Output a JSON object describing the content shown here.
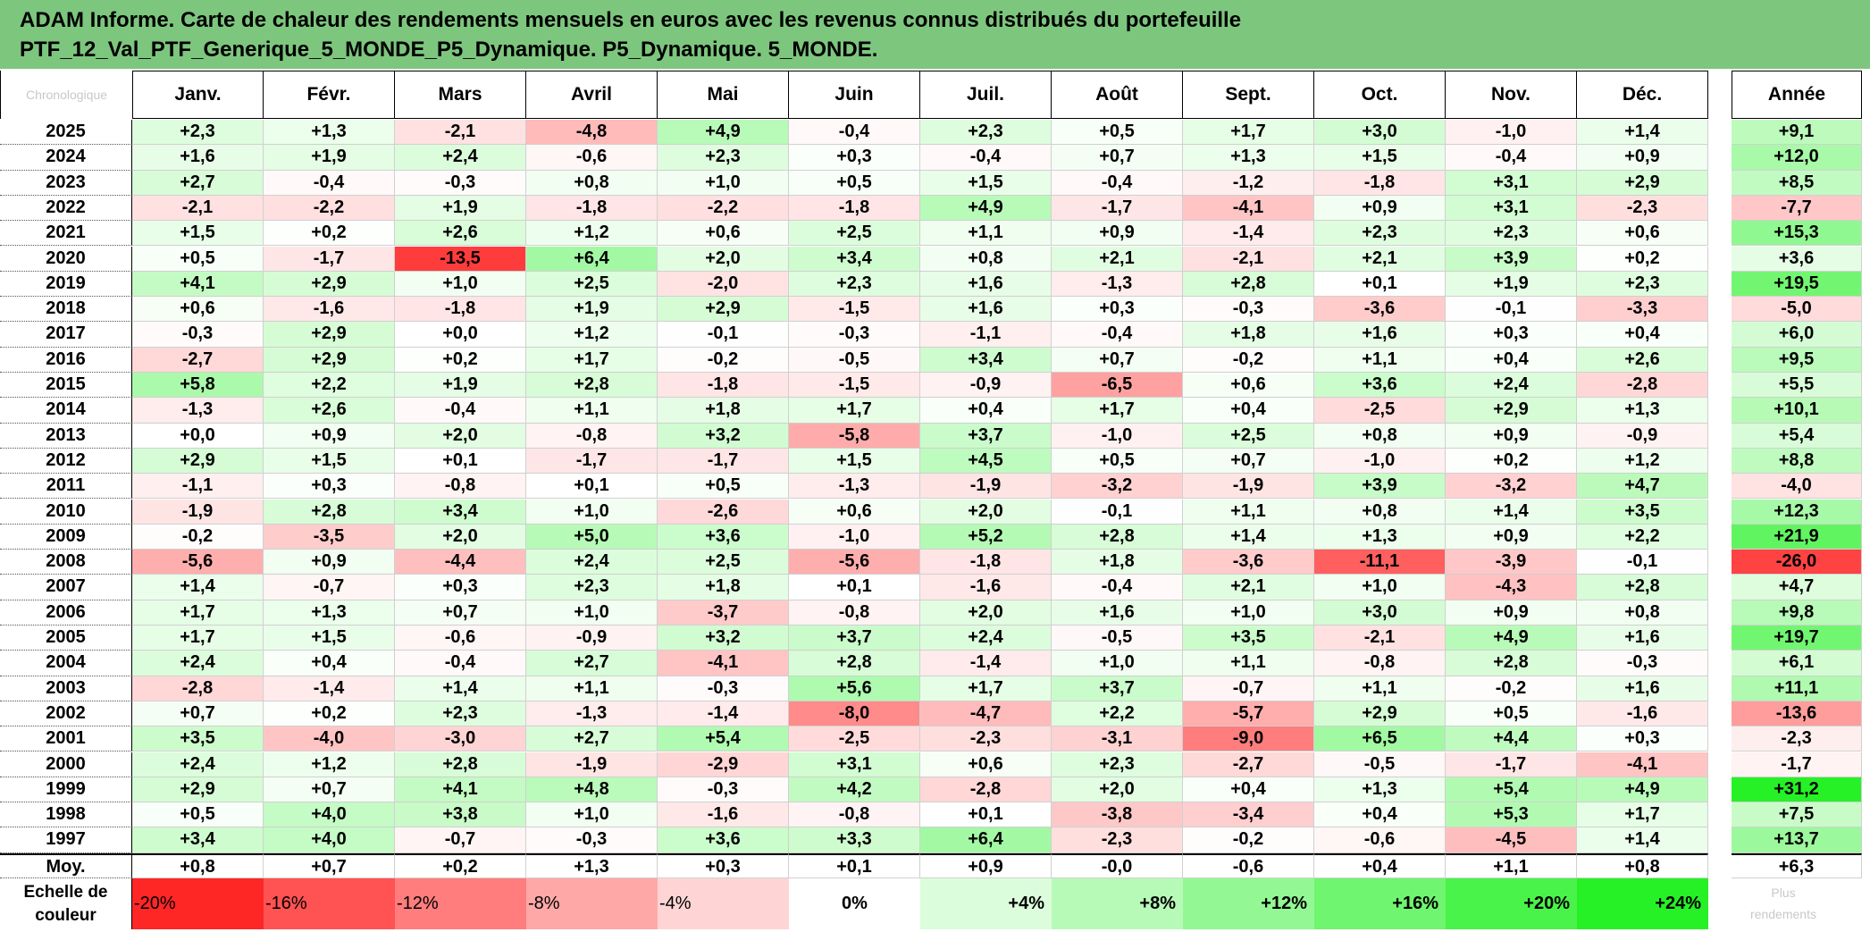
{
  "title_line1": "ADAM Informe. Carte de chaleur des rendements mensuels en euros avec les revenus connus distribués du portefeuille",
  "title_line2": "PTF_12_Val_PTF_Generique_5_MONDE_P5_Dynamique. P5_Dynamique. 5_MONDE.",
  "corner_label": "Chronologique",
  "year_header": "Année",
  "average_label": "Moy.",
  "scale_label_line1": "Echelle de",
  "scale_label_line2": "couleur",
  "scale_ghost_line1": "Plus",
  "scale_ghost_line2": "rendements",
  "colors": {
    "negative": "#ff0000",
    "positive": "#00ee00",
    "neutral": "#ffffff",
    "header": "#7dc67e"
  },
  "chart_data": {
    "type": "heatmap",
    "months": [
      "Janv.",
      "Févr.",
      "Mars",
      "Avril",
      "Mai",
      "Juin",
      "Juil.",
      "Août",
      "Sept.",
      "Oct.",
      "Nov.",
      "Déc."
    ],
    "rows": [
      {
        "year": "2025",
        "values": [
          "+2,3",
          "+1,3",
          "-2,1",
          "-4,8",
          "+4,9",
          "-0,4",
          "+2,3",
          "+0,5",
          "+1,7",
          "+3,0",
          "-1,0",
          "+1,4"
        ],
        "annual": "+9,1"
      },
      {
        "year": "2024",
        "values": [
          "+1,6",
          "+1,9",
          "+2,4",
          "-0,6",
          "+2,3",
          "+0,3",
          "-0,4",
          "+0,7",
          "+1,3",
          "+1,5",
          "-0,4",
          "+0,9"
        ],
        "annual": "+12,0"
      },
      {
        "year": "2023",
        "values": [
          "+2,7",
          "-0,4",
          "-0,3",
          "+0,8",
          "+1,0",
          "+0,5",
          "+1,5",
          "-0,4",
          "-1,2",
          "-1,8",
          "+3,1",
          "+2,9"
        ],
        "annual": "+8,5"
      },
      {
        "year": "2022",
        "values": [
          "-2,1",
          "-2,2",
          "+1,9",
          "-1,8",
          "-2,2",
          "-1,8",
          "+4,9",
          "-1,7",
          "-4,1",
          "+0,9",
          "+3,1",
          "-2,3"
        ],
        "annual": "-7,7"
      },
      {
        "year": "2021",
        "values": [
          "+1,5",
          "+0,2",
          "+2,6",
          "+1,2",
          "+0,6",
          "+2,5",
          "+1,1",
          "+0,9",
          "-1,4",
          "+2,3",
          "+2,3",
          "+0,6"
        ],
        "annual": "+15,3"
      },
      {
        "year": "2020",
        "values": [
          "+0,5",
          "-1,7",
          "-13,5",
          "+6,4",
          "+2,0",
          "+3,4",
          "+0,8",
          "+2,1",
          "-2,1",
          "+2,1",
          "+3,9",
          "+0,2"
        ],
        "annual": "+3,6"
      },
      {
        "year": "2019",
        "values": [
          "+4,1",
          "+2,9",
          "+1,0",
          "+2,5",
          "-2,0",
          "+2,3",
          "+1,6",
          "-1,3",
          "+2,8",
          "+0,1",
          "+1,9",
          "+2,3"
        ],
        "annual": "+19,5"
      },
      {
        "year": "2018",
        "values": [
          "+0,6",
          "-1,6",
          "-1,8",
          "+1,9",
          "+2,9",
          "-1,5",
          "+1,6",
          "+0,3",
          "-0,3",
          "-3,6",
          "-0,1",
          "-3,3"
        ],
        "annual": "-5,0"
      },
      {
        "year": "2017",
        "values": [
          "-0,3",
          "+2,9",
          "+0,0",
          "+1,2",
          "-0,1",
          "-0,3",
          "-1,1",
          "-0,4",
          "+1,8",
          "+1,6",
          "+0,3",
          "+0,4"
        ],
        "annual": "+6,0"
      },
      {
        "year": "2016",
        "values": [
          "-2,7",
          "+2,9",
          "+0,2",
          "+1,7",
          "-0,2",
          "-0,5",
          "+3,4",
          "+0,7",
          "-0,2",
          "+1,1",
          "+0,4",
          "+2,6"
        ],
        "annual": "+9,5"
      },
      {
        "year": "2015",
        "values": [
          "+5,8",
          "+2,2",
          "+1,9",
          "+2,8",
          "-1,8",
          "-1,5",
          "-0,9",
          "-6,5",
          "+0,6",
          "+3,6",
          "+2,4",
          "-2,8"
        ],
        "annual": "+5,5"
      },
      {
        "year": "2014",
        "values": [
          "-1,3",
          "+2,6",
          "-0,4",
          "+1,1",
          "+1,8",
          "+1,7",
          "+0,4",
          "+1,7",
          "+0,4",
          "-2,5",
          "+2,9",
          "+1,3"
        ],
        "annual": "+10,1"
      },
      {
        "year": "2013",
        "values": [
          "+0,0",
          "+0,9",
          "+2,0",
          "-0,8",
          "+3,2",
          "-5,8",
          "+3,7",
          "-1,0",
          "+2,5",
          "+0,8",
          "+0,9",
          "-0,9"
        ],
        "annual": "+5,4"
      },
      {
        "year": "2012",
        "values": [
          "+2,9",
          "+1,5",
          "+0,1",
          "-1,7",
          "-1,7",
          "+1,5",
          "+4,5",
          "+0,5",
          "+0,7",
          "-1,0",
          "+0,2",
          "+1,2"
        ],
        "annual": "+8,8"
      },
      {
        "year": "2011",
        "values": [
          "-1,1",
          "+0,3",
          "-0,8",
          "+0,1",
          "+0,5",
          "-1,3",
          "-1,9",
          "-3,2",
          "-1,9",
          "+3,9",
          "-3,2",
          "+4,7"
        ],
        "annual": "-4,0"
      },
      {
        "year": "2010",
        "values": [
          "-1,9",
          "+2,8",
          "+3,4",
          "+1,0",
          "-2,6",
          "+0,6",
          "+2,0",
          "-0,1",
          "+1,1",
          "+0,8",
          "+1,4",
          "+3,5"
        ],
        "annual": "+12,3"
      },
      {
        "year": "2009",
        "values": [
          "-0,2",
          "-3,5",
          "+2,0",
          "+5,0",
          "+3,6",
          "-1,0",
          "+5,2",
          "+2,8",
          "+1,4",
          "+1,3",
          "+0,9",
          "+2,2"
        ],
        "annual": "+21,9"
      },
      {
        "year": "2008",
        "values": [
          "-5,6",
          "+0,9",
          "-4,4",
          "+2,4",
          "+2,5",
          "-5,6",
          "-1,8",
          "+1,8",
          "-3,6",
          "-11,1",
          "-3,9",
          "-0,1"
        ],
        "annual": "-26,0"
      },
      {
        "year": "2007",
        "values": [
          "+1,4",
          "-0,7",
          "+0,3",
          "+2,3",
          "+1,8",
          "+0,1",
          "-1,6",
          "-0,4",
          "+2,1",
          "+1,0",
          "-4,3",
          "+2,8"
        ],
        "annual": "+4,7"
      },
      {
        "year": "2006",
        "values": [
          "+1,7",
          "+1,3",
          "+0,7",
          "+1,0",
          "-3,7",
          "-0,8",
          "+2,0",
          "+1,6",
          "+1,0",
          "+3,0",
          "+0,9",
          "+0,8"
        ],
        "annual": "+9,8"
      },
      {
        "year": "2005",
        "values": [
          "+1,7",
          "+1,5",
          "-0,6",
          "-0,9",
          "+3,2",
          "+3,7",
          "+2,4",
          "-0,5",
          "+3,5",
          "-2,1",
          "+4,9",
          "+1,6"
        ],
        "annual": "+19,7"
      },
      {
        "year": "2004",
        "values": [
          "+2,4",
          "+0,4",
          "-0,4",
          "+2,7",
          "-4,1",
          "+2,8",
          "-1,4",
          "+1,0",
          "+1,1",
          "-0,8",
          "+2,8",
          "-0,3"
        ],
        "annual": "+6,1"
      },
      {
        "year": "2003",
        "values": [
          "-2,8",
          "-1,4",
          "+1,4",
          "+1,1",
          "-0,3",
          "+5,6",
          "+1,7",
          "+3,7",
          "-0,7",
          "+1,1",
          "-0,2",
          "+1,6"
        ],
        "annual": "+11,1"
      },
      {
        "year": "2002",
        "values": [
          "+0,7",
          "+0,2",
          "+2,3",
          "-1,3",
          "-1,4",
          "-8,0",
          "-4,7",
          "+2,2",
          "-5,7",
          "+2,9",
          "+0,5",
          "-1,6"
        ],
        "annual": "-13,6"
      },
      {
        "year": "2001",
        "values": [
          "+3,5",
          "-4,0",
          "-3,0",
          "+2,7",
          "+5,4",
          "-2,5",
          "-2,3",
          "-3,1",
          "-9,0",
          "+6,5",
          "+4,4",
          "+0,3"
        ],
        "annual": "-2,3"
      },
      {
        "year": "2000",
        "values": [
          "+2,4",
          "+1,2",
          "+2,8",
          "-1,9",
          "-2,9",
          "+3,1",
          "+0,6",
          "+2,3",
          "-2,7",
          "-0,5",
          "-1,7",
          "-4,1"
        ],
        "annual": "-1,7"
      },
      {
        "year": "1999",
        "values": [
          "+2,9",
          "+0,7",
          "+4,1",
          "+4,8",
          "-0,3",
          "+4,2",
          "-2,8",
          "+2,0",
          "+0,4",
          "+1,3",
          "+5,4",
          "+4,9"
        ],
        "annual": "+31,2"
      },
      {
        "year": "1998",
        "values": [
          "+0,5",
          "+4,0",
          "+3,8",
          "+1,0",
          "-1,6",
          "-0,8",
          "+0,1",
          "-3,8",
          "-3,4",
          "+0,4",
          "+5,3",
          "+1,7"
        ],
        "annual": "+7,5"
      },
      {
        "year": "1997",
        "values": [
          "+3,4",
          "+4,0",
          "-0,7",
          "-0,3",
          "+3,6",
          "+3,3",
          "+6,4",
          "-2,3",
          "-0,2",
          "-0,6",
          "-4,5",
          "+1,4"
        ],
        "annual": "+13,7"
      }
    ],
    "average": {
      "values": [
        "+0,8",
        "+0,7",
        "+0,2",
        "+1,3",
        "+0,3",
        "+0,1",
        "+0,9",
        "-0,0",
        "-0,6",
        "+0,4",
        "+1,1",
        "+0,8"
      ],
      "annual": "+6,3"
    },
    "color_scale": [
      "-20%",
      "-16%",
      "-12%",
      "-8%",
      "-4%",
      "0%",
      "+4%",
      "+8%",
      "+12%",
      "+16%",
      "+20%",
      "+24%"
    ],
    "color_scale_values": [
      -20,
      -16,
      -12,
      -8,
      -4,
      0,
      4,
      8,
      12,
      16,
      20,
      24
    ]
  }
}
